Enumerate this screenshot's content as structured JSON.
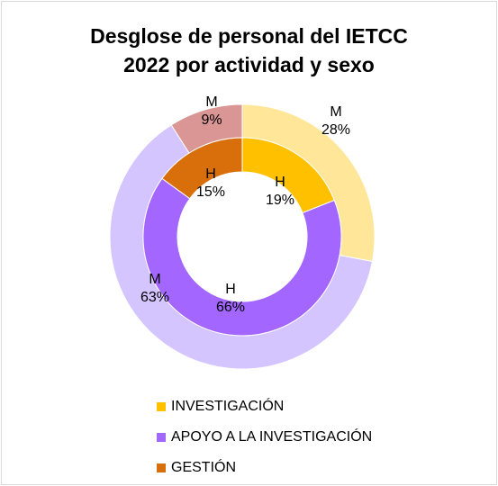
{
  "chart_data": {
    "type": "pie",
    "subtype": "donut",
    "title_lines": [
      "Desglose de personal del IETCC",
      "2022 por actividad y sexo"
    ],
    "categories": [
      "INVESTIGACIÓN",
      "APOYO A LA INVESTIGACIÓN",
      "GESTIÓN"
    ],
    "series": [
      {
        "ring": "inner",
        "labels": [
          "H",
          "H",
          "H"
        ],
        "values": [
          19,
          66,
          15
        ],
        "value_labels": [
          "19%",
          "66%",
          "15%"
        ],
        "colors": [
          "#FFC000",
          "#A366FF",
          "#D86F0B"
        ]
      },
      {
        "ring": "outer",
        "labels": [
          "M",
          "M",
          "M"
        ],
        "values": [
          28,
          63,
          9
        ],
        "value_labels": [
          "28%",
          "63%",
          "9%"
        ],
        "colors": [
          "#FFE699",
          "#D4C4FF",
          "#D99694"
        ]
      }
    ],
    "legend": {
      "placement": "bottom",
      "items": [
        {
          "label": "INVESTIGACIÓN",
          "color": "#FFC000"
        },
        {
          "label": "APOYO A LA INVESTIGACIÓN",
          "color": "#A366FF"
        },
        {
          "label": "GESTIÓN",
          "color": "#D86F0B"
        }
      ]
    }
  }
}
